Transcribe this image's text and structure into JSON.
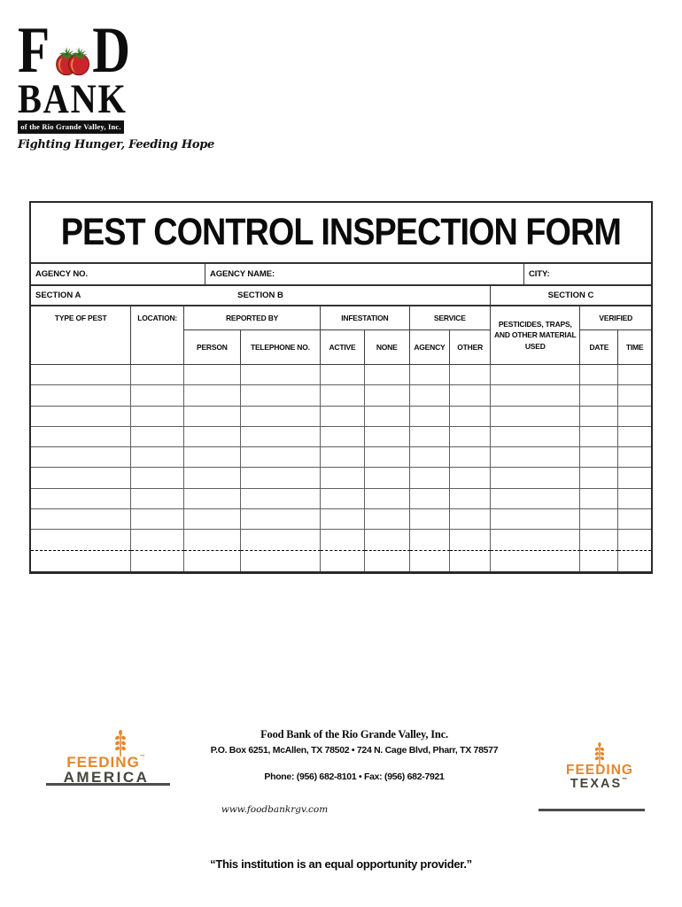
{
  "logo": {
    "letter_f": "F",
    "letter_d": "D",
    "bank": "BANK",
    "subtitle": "of the Rio Grande Valley, Inc.",
    "tagline": "Fighting Hunger, Feeding Hope"
  },
  "form": {
    "title": "PEST CONTROL INSPECTION FORM",
    "agency_no_label": "AGENCY NO.",
    "agency_name_label": "AGENCY NAME:",
    "city_label": "CITY:",
    "section_a": "SECTION A",
    "section_b": "SECTION B",
    "section_c": "SECTION C",
    "columns": {
      "type_of_pest": "TYPE OF PEST",
      "location": "LOCATION:",
      "reported_by": "REPORTED BY",
      "infestation": "INFESTATION",
      "service": "SERVICE",
      "pesticides": "PESTICIDES, TRAPS, AND OTHER MATERIAL USED",
      "verified": "VERIFIED",
      "person": "PERSON",
      "telephone_no": "TELEPHONE NO.",
      "active": "ACTIVE",
      "none": "NONE",
      "agency": "AGENCY",
      "other": "OTHER",
      "date": "DATE",
      "time": "TIME"
    },
    "body_rows": 10,
    "body_cols": 11
  },
  "footer": {
    "feeding_america": {
      "feeding": "FEEDING",
      "region": "AMERICA",
      "tm": "™"
    },
    "feeding_texas": {
      "feeding": "FEEDING",
      "region": "TEXAS",
      "tm": "™"
    },
    "org_name": "Food Bank of the Rio Grande Valley, Inc.",
    "address": "P.O. Box 6251, McAllen, TX 78502 • 724 N. Cage Blvd, Pharr, TX 78577",
    "phone_fax": "Phone: (956) 682-8101 •  Fax: (956) 682-7921",
    "website": "www.foodbankrgv.com",
    "disclaimer": "“This institution is an equal opportunity provider.”"
  },
  "colors": {
    "accent_orange": "#E5862C",
    "logo_red": "#C9252B",
    "leaf_green": "#3E7C28",
    "dark_olive": "#45463C"
  }
}
